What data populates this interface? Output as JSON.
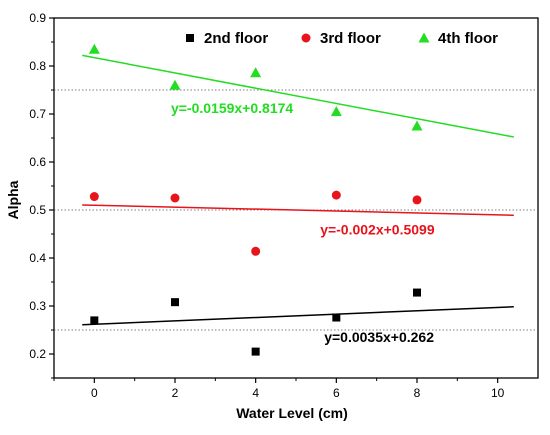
{
  "chart_data": {
    "type": "scatter",
    "xlabel": "Water Level (cm)",
    "ylabel": "Alpha",
    "xlim": [
      -1,
      11
    ],
    "ylim": [
      0.15,
      0.9
    ],
    "x_ticks": [
      0,
      2,
      4,
      6,
      8,
      10
    ],
    "x_tick_labels": [
      "0",
      "2",
      "4",
      "6",
      "8",
      "10"
    ],
    "y_ticks": [
      0.2,
      0.3,
      0.4,
      0.5,
      0.6,
      0.7,
      0.8,
      0.9
    ],
    "y_tick_labels": [
      "0.2",
      "0.3",
      "0.4",
      "0.5",
      "0.6",
      "0.7",
      "0.8",
      "0.9"
    ],
    "grid": false,
    "legend_position": "top-right",
    "reference_lines": [
      0.25,
      0.5,
      0.75
    ],
    "series": [
      {
        "name": "2nd floor",
        "marker": "square",
        "color": "#000000",
        "x": [
          0,
          2,
          4,
          6,
          8
        ],
        "y": [
          0.27,
          0.308,
          0.205,
          0.276,
          0.328
        ],
        "fit": {
          "slope": 0.0035,
          "intercept": 0.262,
          "x_range": [
            -0.3,
            10.4
          ],
          "equation": "y=0.0035x+0.262"
        }
      },
      {
        "name": "3rd floor",
        "marker": "circle",
        "color": "#e8141b",
        "x": [
          0,
          2,
          4,
          6,
          8
        ],
        "y": [
          0.528,
          0.525,
          0.414,
          0.531,
          0.521
        ],
        "fit": {
          "slope": -0.002,
          "intercept": 0.5099,
          "x_range": [
            -0.3,
            10.4
          ],
          "equation": "y=-0.002x+0.5099"
        }
      },
      {
        "name": "4th floor",
        "marker": "triangle",
        "color": "#22dd22",
        "x": [
          0,
          2,
          4,
          6,
          8
        ],
        "y": [
          0.835,
          0.76,
          0.786,
          0.705,
          0.675
        ],
        "fit": {
          "slope": -0.0159,
          "intercept": 0.8174,
          "x_range": [
            -0.3,
            10.4
          ],
          "equation": "y=-0.0159x+0.8174"
        }
      }
    ]
  }
}
